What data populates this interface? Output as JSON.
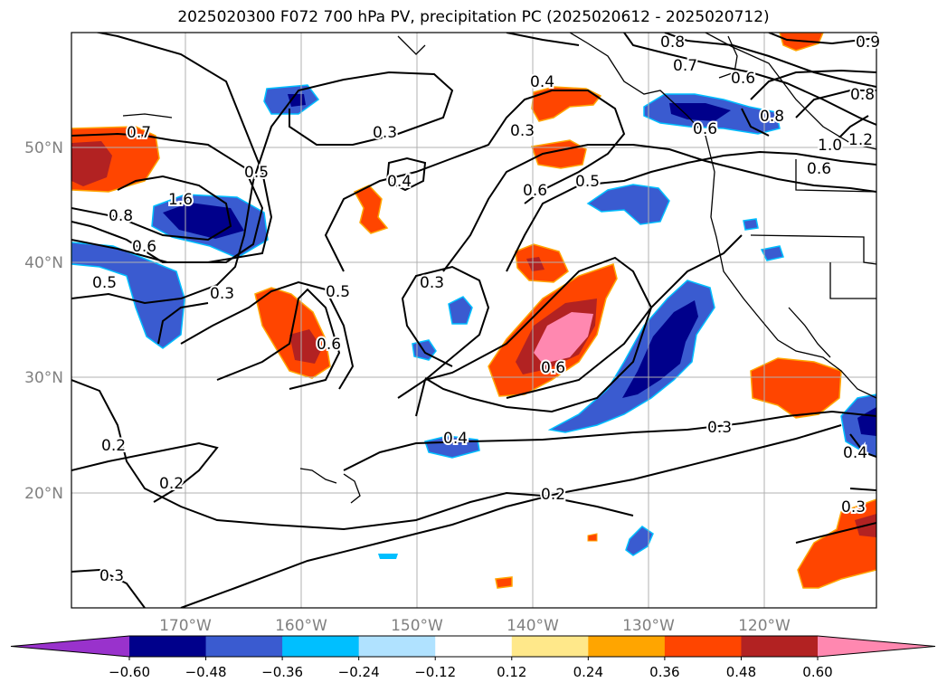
{
  "title": "2025020300 F072 700 hPa PV, precipitation PC (2025020612 - 2025020712)",
  "lat_labels": [
    "50°N",
    "40°N",
    "30°N",
    "20°N"
  ],
  "lon_labels": [
    "170°W",
    "160°W",
    "150°W",
    "140°W",
    "130°W",
    "120°W"
  ],
  "colorbar": {
    "ticks": [
      "−0.60",
      "−0.48",
      "−0.36",
      "−0.24",
      "−0.12",
      "0.12",
      "0.24",
      "0.36",
      "0.48",
      "0.60"
    ],
    "colors": [
      "#9932cc",
      "#00008b",
      "#3a5bd0",
      "#00bfff",
      "#b0e2ff",
      "#ffffff",
      "#ffe88a",
      "#ffa500",
      "#ff4500",
      "#b22222",
      "#ff88b0"
    ]
  },
  "contour_labels": {
    "l1": "0.7",
    "l2": "1.6",
    "l3": "0.8",
    "l4": "0.6",
    "l5": "0.5",
    "l6": "0.5",
    "l7": "0.3",
    "l8": "0.2",
    "l9": "0.2",
    "l10": "0.3",
    "l11": "0.5",
    "l12": "0.6",
    "l13": "0.3",
    "l14": "0.4",
    "l15": "0.3",
    "l16": "0.4",
    "l17": "0.3",
    "l18": "0.6",
    "l19": "0.5",
    "l20": "0.6",
    "l21": "0.4",
    "l22": "0.2",
    "l23": "0.3",
    "l24": "0.8",
    "l25": "0.7",
    "l26": "0.6",
    "l27": "0.8",
    "l28": "1.0",
    "l29": "1.2",
    "l30": "0.6",
    "l31": "0.8",
    "l32": "0.3",
    "l33": "0.4",
    "l34": "0.9",
    "l35": "0.6"
  }
}
